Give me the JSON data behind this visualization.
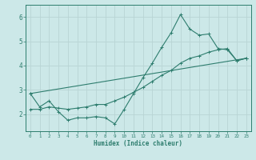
{
  "xlabel": "Humidex (Indice chaleur)",
  "bg_color": "#cce8e8",
  "grid_color": "#b8d4d4",
  "line_color": "#2e7d6e",
  "xlim": [
    -0.5,
    23.5
  ],
  "ylim": [
    1.3,
    6.5
  ],
  "yticks": [
    2,
    3,
    4,
    5,
    6
  ],
  "xticks": [
    0,
    1,
    2,
    3,
    4,
    5,
    6,
    7,
    8,
    9,
    10,
    11,
    12,
    13,
    14,
    15,
    16,
    17,
    18,
    19,
    20,
    21,
    22,
    23
  ],
  "line1_x": [
    0,
    1,
    2,
    3,
    4,
    5,
    6,
    7,
    8,
    9,
    10,
    11,
    12,
    13,
    14,
    15,
    16,
    17,
    18,
    19,
    20,
    21,
    22,
    23
  ],
  "line1_y": [
    2.85,
    2.3,
    2.55,
    2.1,
    1.75,
    1.85,
    1.85,
    1.9,
    1.85,
    1.6,
    2.2,
    2.85,
    3.5,
    4.1,
    4.75,
    5.35,
    6.1,
    5.5,
    5.25,
    5.3,
    4.7,
    4.65,
    4.2,
    4.3
  ],
  "line2_x": [
    0,
    1,
    2,
    3,
    4,
    5,
    6,
    7,
    8,
    9,
    10,
    11,
    12,
    13,
    14,
    15,
    16,
    17,
    18,
    19,
    20,
    21,
    22,
    23
  ],
  "line2_y": [
    2.2,
    2.2,
    2.3,
    2.25,
    2.2,
    2.25,
    2.3,
    2.4,
    2.4,
    2.55,
    2.7,
    2.9,
    3.1,
    3.35,
    3.6,
    3.8,
    4.1,
    4.3,
    4.4,
    4.55,
    4.65,
    4.7,
    4.2,
    4.3
  ],
  "line3_x": [
    0,
    23
  ],
  "line3_y": [
    2.85,
    4.3
  ]
}
